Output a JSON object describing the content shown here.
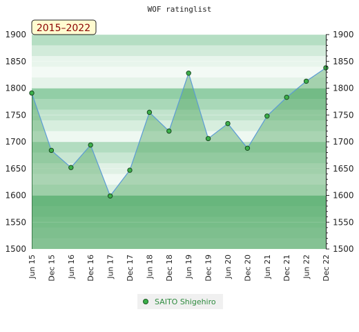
{
  "chart_data": {
    "type": "line",
    "title": "WOF ratinglist",
    "period_badge": "2015–2022",
    "categories": [
      "Jun 15",
      "Dec 15",
      "Jun 16",
      "Dec 16",
      "Jun 17",
      "Dec 17",
      "Jun 18",
      "Dec 18",
      "Jun 19",
      "Dec 19",
      "Jun 20",
      "Dec 20",
      "Jun 21",
      "Dec 21",
      "Jun 22",
      "Dec 22"
    ],
    "series": [
      {
        "name": "SAITO Shigehiro",
        "values": [
          1791,
          1684,
          1652,
          1694,
          1599,
          1647,
          1755,
          1720,
          1828,
          1706,
          1734,
          1688,
          1748,
          1783,
          1813,
          1838
        ]
      }
    ],
    "y_ticks": [
      "1900",
      "1850",
      "1800",
      "1750",
      "1700",
      "1650",
      "1600",
      "1550",
      "1500"
    ],
    "ylim": [
      1500,
      1900
    ],
    "grid": true,
    "legend": "bottom-center",
    "colors": {
      "line": "#5b9bd5",
      "marker": "#3cb04a",
      "area": "#4aa35a",
      "band_dark": "#7ec496",
      "band_light": "#f2f9f3",
      "badge_fill": "#fffbd0",
      "badge_text": "#8b0000"
    }
  }
}
